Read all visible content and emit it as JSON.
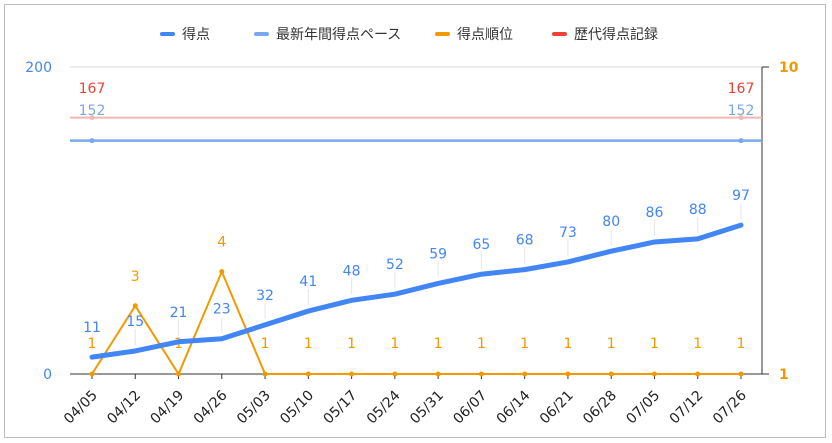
{
  "chart_data": {
    "type": "line",
    "categories": [
      "04/05",
      "04/12",
      "04/19",
      "04/26",
      "05/03",
      "05/10",
      "05/17",
      "05/24",
      "05/31",
      "06/07",
      "06/14",
      "06/21",
      "06/28",
      "07/05",
      "07/12",
      "07/26"
    ],
    "legend_position": "top",
    "grid": true,
    "axes": {
      "left": {
        "ylim": [
          0,
          200
        ],
        "ticks": [
          "0",
          "200"
        ],
        "color": "#4285f4"
      },
      "right": {
        "ylim": [
          1,
          10
        ],
        "ticks": [
          "1",
          "10"
        ],
        "color": "#f29900"
      }
    },
    "series": [
      {
        "name": "得点",
        "axis": "left",
        "color": "#4285f4",
        "values": [
          11,
          15,
          21,
          23,
          32,
          41,
          48,
          52,
          59,
          65,
          68,
          73,
          80,
          86,
          88,
          97
        ]
      },
      {
        "name": "最新年間得点ペース",
        "axis": "left",
        "color": "#79a8ee",
        "values": [
          152,
          null,
          null,
          null,
          null,
          null,
          null,
          null,
          null,
          null,
          null,
          null,
          null,
          null,
          null,
          152
        ],
        "constant": 152
      },
      {
        "name": "得点順位",
        "axis": "right",
        "color": "#f29900",
        "values": [
          1,
          3,
          1,
          4,
          1,
          1,
          1,
          1,
          1,
          1,
          1,
          1,
          1,
          1,
          1,
          1
        ]
      },
      {
        "name": "歴代得点記録",
        "axis": "left",
        "color": "#ea4335",
        "values": [
          167,
          null,
          null,
          null,
          null,
          null,
          null,
          null,
          null,
          null,
          null,
          null,
          null,
          null,
          null,
          167
        ],
        "constant": 167
      }
    ]
  }
}
